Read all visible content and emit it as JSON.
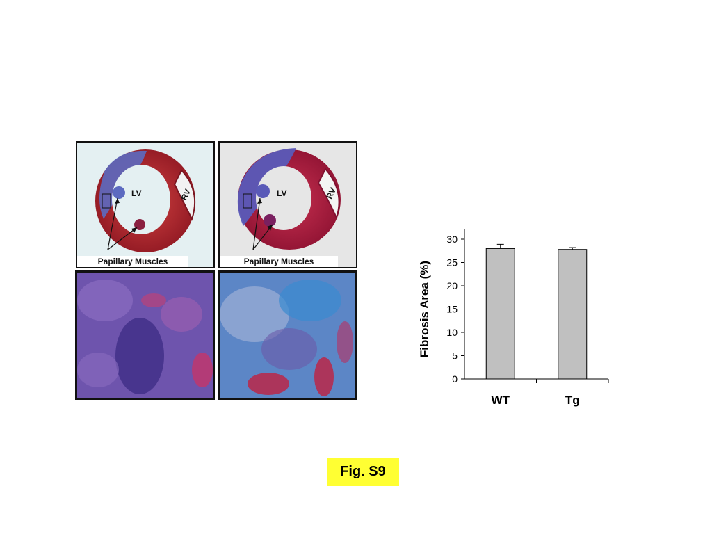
{
  "panels": {
    "top_left": {
      "lv": "LV",
      "rv": "RV",
      "caption": "Papillary Muscles"
    },
    "top_right": {
      "lv": "LV",
      "rv": "RV",
      "caption": "Papillary Muscles"
    }
  },
  "colors": {
    "tissue_red": "#b0202a",
    "tissue_blue": "#5560b8",
    "bg_left": "#e4f0f2",
    "bg_right": "#e6e6e6",
    "bar_fill": "#c0c0c0",
    "fig_label_bg": "#ffff33"
  },
  "chart_data": {
    "type": "bar",
    "categories": [
      "WT",
      "Tg"
    ],
    "values": [
      28.0,
      27.8
    ],
    "errors": [
      0.9,
      0.4
    ],
    "ylabel": "Fibrosis Area (%)",
    "xlabel": "",
    "ylim": [
      0,
      30
    ],
    "yticks": [
      0,
      5,
      10,
      15,
      20,
      25,
      30
    ],
    "grid": false
  },
  "figure_label": "Fig. S9"
}
